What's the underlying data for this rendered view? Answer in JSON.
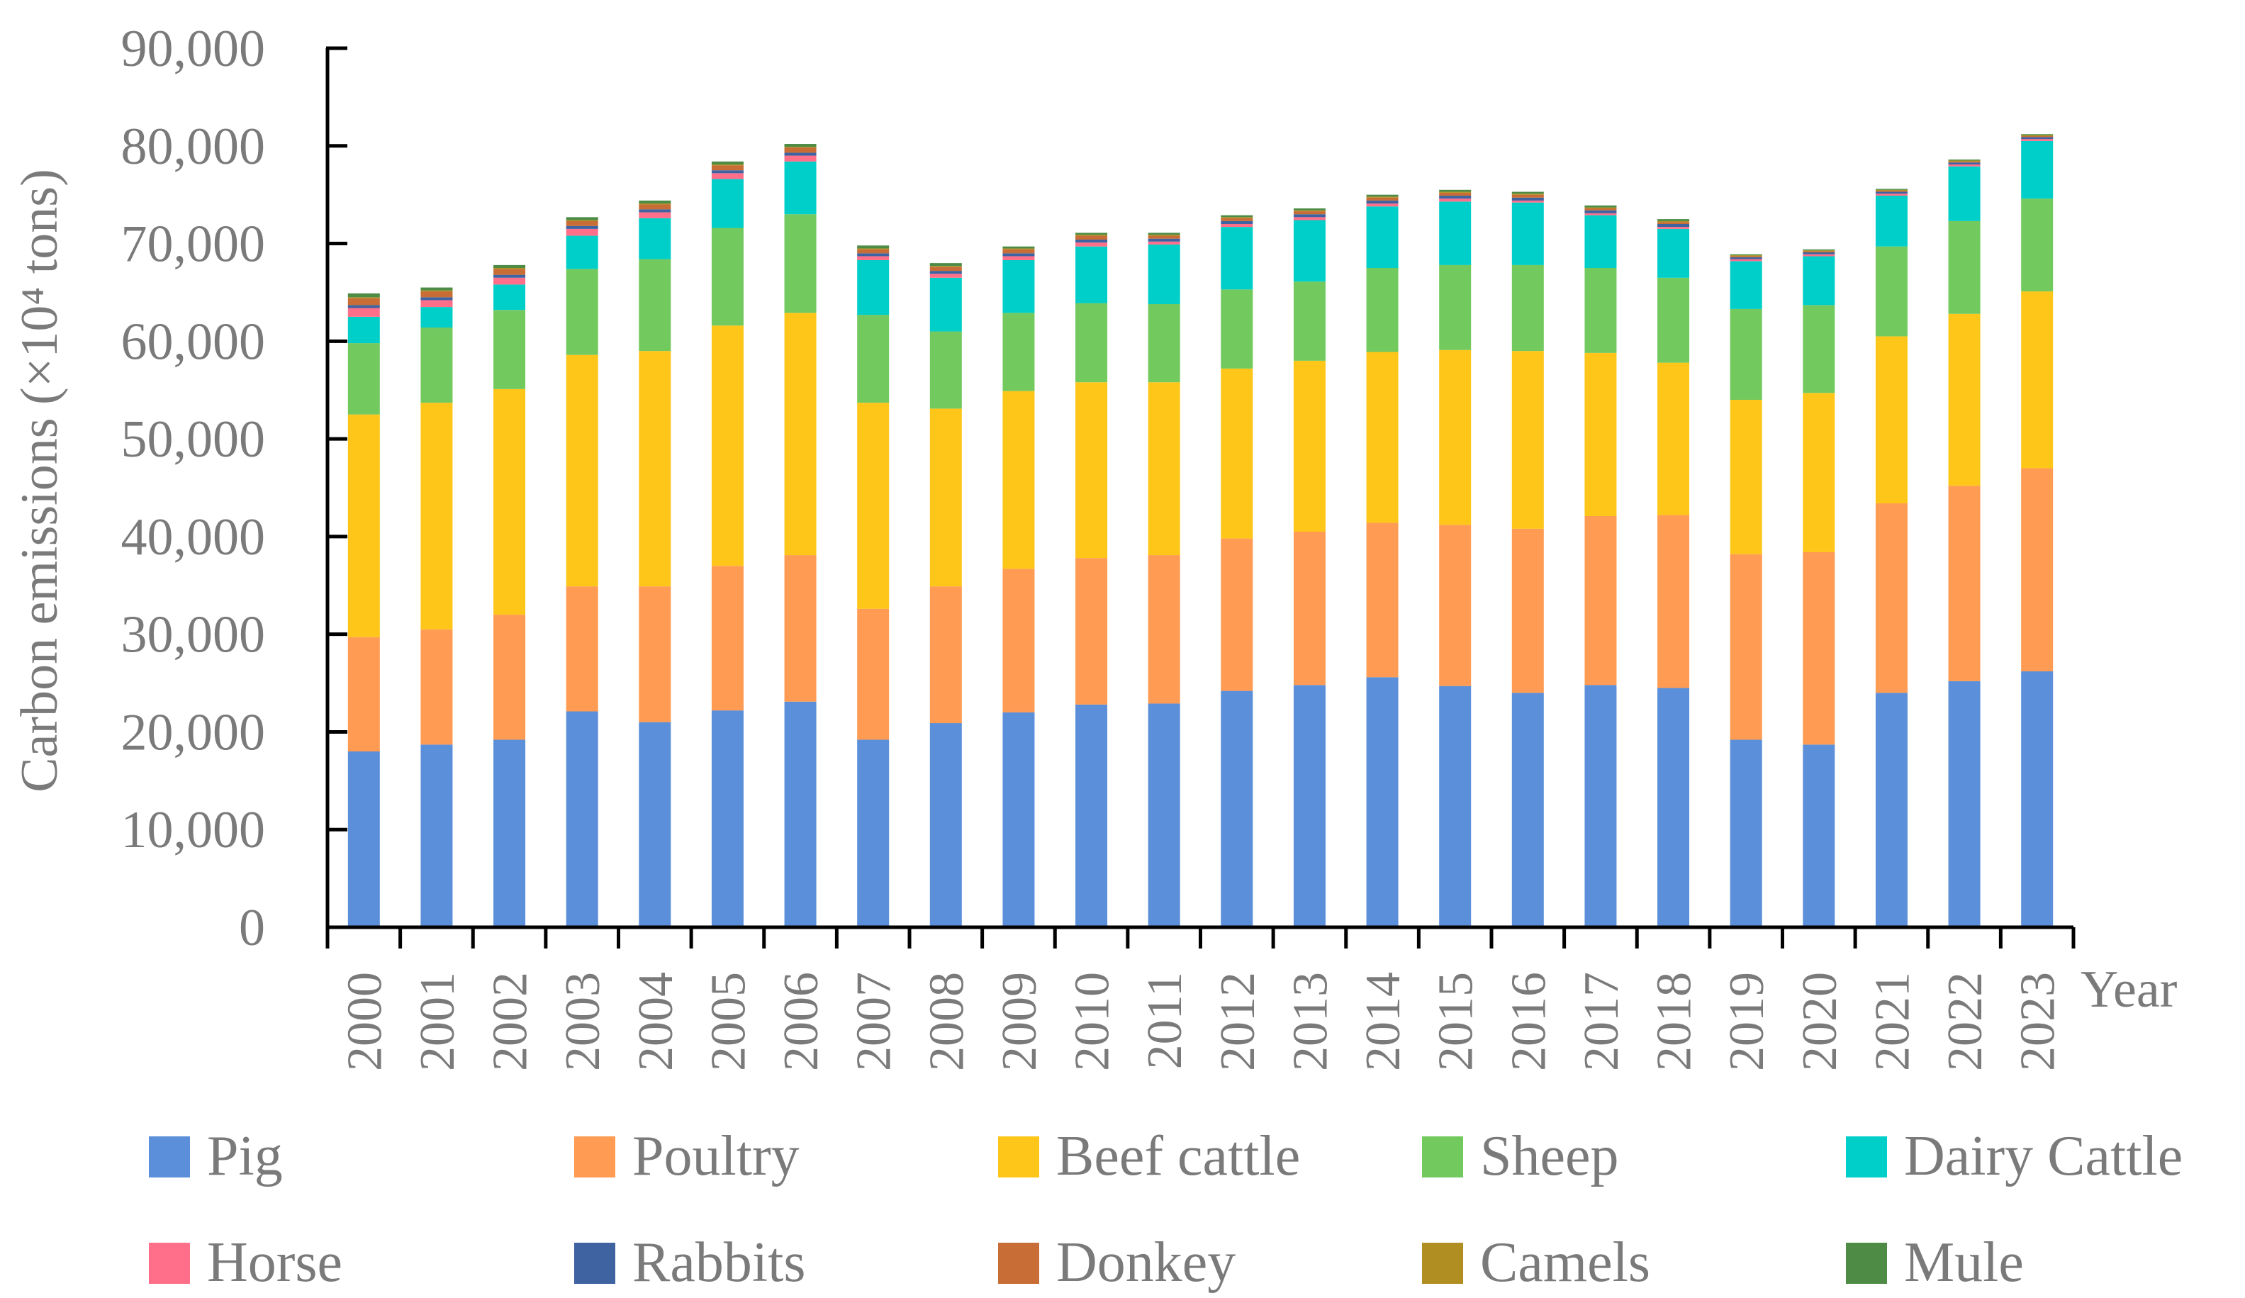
{
  "chart_data": {
    "type": "bar",
    "stacked": true,
    "title": "",
    "xlabel": "Year",
    "ylabel": "Carbon emissions (×10⁴ tons)",
    "ylim": [
      0,
      90000
    ],
    "yticks": [
      0,
      10000,
      20000,
      30000,
      40000,
      50000,
      60000,
      70000,
      80000,
      90000
    ],
    "ytick_labels": [
      "0",
      "10,000",
      "20,000",
      "30,000",
      "40,000",
      "50,000",
      "60,000",
      "70,000",
      "80,000",
      "90,000"
    ],
    "grid": false,
    "legend_position": "bottom",
    "categories": [
      "2000",
      "2001",
      "2002",
      "2003",
      "2004",
      "2005",
      "2006",
      "2007",
      "2008",
      "2009",
      "2010",
      "2011",
      "2012",
      "2013",
      "2014",
      "2015",
      "2016",
      "2017",
      "2018",
      "2019",
      "2020",
      "2021",
      "2022",
      "2023"
    ],
    "series": [
      {
        "name": "Pig",
        "color": "#5B8FD9",
        "values": [
          18000,
          18700,
          19200,
          22100,
          21000,
          22200,
          23100,
          19200,
          20900,
          22000,
          22800,
          22900,
          24200,
          24800,
          25600,
          24700,
          24000,
          24800,
          24500,
          19200,
          18700,
          24000,
          25200,
          26200
        ]
      },
      {
        "name": "Poultry",
        "color": "#FF9B52",
        "values": [
          11700,
          11800,
          12800,
          12800,
          13900,
          14800,
          15000,
          13400,
          14000,
          14700,
          15000,
          15200,
          15600,
          15700,
          15800,
          16500,
          16800,
          17300,
          17700,
          19000,
          19700,
          19400,
          20000,
          20800
        ]
      },
      {
        "name": "Beef cattle",
        "color": "#FFC61A",
        "values": [
          22800,
          23200,
          23100,
          23700,
          24100,
          24600,
          24800,
          21100,
          18200,
          18200,
          18000,
          17700,
          17400,
          17500,
          17500,
          17900,
          18200,
          16700,
          15600,
          15800,
          16300,
          17100,
          17600,
          18100
        ]
      },
      {
        "name": "Sheep",
        "color": "#72C95E",
        "values": [
          7300,
          7700,
          8100,
          8800,
          9400,
          10000,
          10100,
          9000,
          7900,
          8000,
          8100,
          8000,
          8100,
          8100,
          8600,
          8700,
          8800,
          8700,
          8700,
          9300,
          9000,
          9200,
          9500,
          9500
        ]
      },
      {
        "name": "Dairy Cattle",
        "color": "#00CEC9",
        "values": [
          2700,
          2100,
          2600,
          3400,
          4200,
          5000,
          5400,
          5600,
          5500,
          5400,
          5800,
          6100,
          6400,
          6300,
          6300,
          6500,
          6400,
          5400,
          5000,
          4900,
          5000,
          5200,
          5600,
          5900
        ]
      },
      {
        "name": "Horse",
        "color": "#FF6F8A",
        "values": [
          900,
          700,
          700,
          700,
          600,
          600,
          600,
          400,
          400,
          400,
          400,
          300,
          300,
          300,
          300,
          300,
          200,
          200,
          200,
          200,
          200,
          200,
          200,
          200
        ]
      },
      {
        "name": "Rabbits",
        "color": "#3E63A0",
        "values": [
          300,
          300,
          300,
          300,
          300,
          300,
          300,
          300,
          300,
          300,
          300,
          300,
          300,
          300,
          300,
          300,
          300,
          300,
          300,
          200,
          200,
          200,
          200,
          200
        ]
      },
      {
        "name": "Donkey",
        "color": "#C86D35",
        "values": [
          700,
          600,
          600,
          500,
          500,
          500,
          500,
          400,
          400,
          400,
          400,
          300,
          300,
          300,
          300,
          300,
          300,
          200,
          200,
          100,
          100,
          100,
          100,
          100
        ]
      },
      {
        "name": "Camels",
        "color": "#B08E22",
        "values": [
          100,
          100,
          100,
          100,
          100,
          100,
          100,
          100,
          100,
          100,
          100,
          100,
          100,
          100,
          100,
          100,
          100,
          100,
          100,
          100,
          100,
          100,
          100,
          100
        ]
      },
      {
        "name": "Mule",
        "color": "#4E8C45",
        "values": [
          400,
          300,
          300,
          300,
          300,
          300,
          300,
          300,
          300,
          200,
          200,
          200,
          200,
          200,
          200,
          200,
          200,
          200,
          200,
          100,
          100,
          100,
          100,
          100
        ]
      }
    ]
  }
}
